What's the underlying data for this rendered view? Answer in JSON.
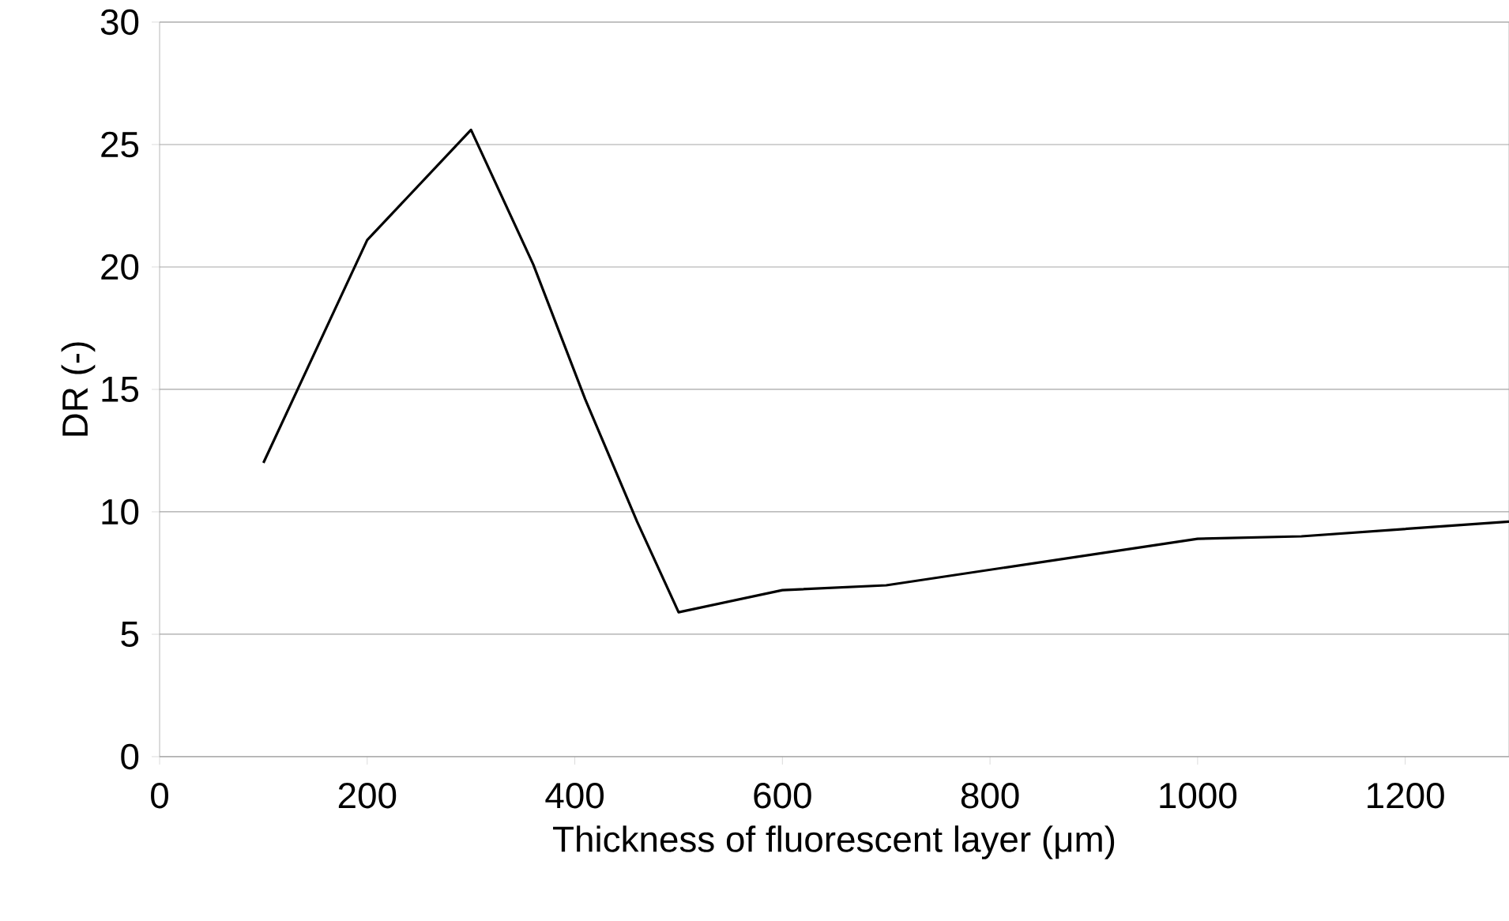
{
  "chart_data": {
    "type": "line",
    "xlabel": "Thickness of fluorescent layer (μm)",
    "ylabel": "DR (-)",
    "x": [
      100,
      200,
      300,
      360,
      410,
      460,
      500,
      600,
      700,
      1000,
      1100,
      1300
    ],
    "series": [
      {
        "color": "#000000",
        "values": [
          12,
          21.1,
          25.6,
          20.1,
          14.6,
          9.6,
          5.9,
          6.8,
          7.0,
          8.9,
          9.0,
          9.6
        ]
      }
    ],
    "xlim": [
      0,
      1300
    ],
    "xticks": [
      0,
      200,
      400,
      600,
      800,
      1000,
      1200
    ],
    "ylim": [
      0,
      30
    ],
    "yticks": [
      0,
      5,
      10,
      15,
      20,
      25,
      30
    ],
    "grid": "y",
    "marker": "none",
    "line_style": "solid"
  }
}
